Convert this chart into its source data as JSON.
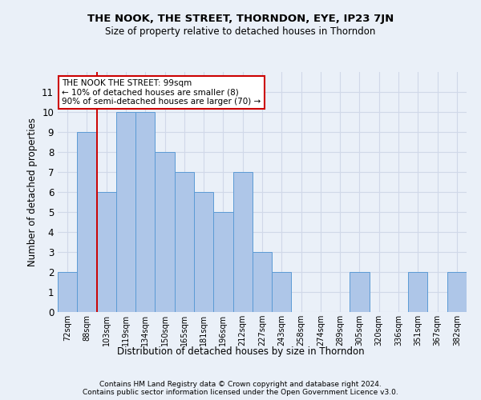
{
  "title": "THE NOOK, THE STREET, THORNDON, EYE, IP23 7JN",
  "subtitle": "Size of property relative to detached houses in Thorndon",
  "xlabel": "Distribution of detached houses by size in Thorndon",
  "ylabel": "Number of detached properties",
  "footer": "Contains HM Land Registry data © Crown copyright and database right 2024.\nContains public sector information licensed under the Open Government Licence v3.0.",
  "categories": [
    "72sqm",
    "88sqm",
    "103sqm",
    "119sqm",
    "134sqm",
    "150sqm",
    "165sqm",
    "181sqm",
    "196sqm",
    "212sqm",
    "227sqm",
    "243sqm",
    "258sqm",
    "274sqm",
    "289sqm",
    "305sqm",
    "320sqm",
    "336sqm",
    "351sqm",
    "367sqm",
    "382sqm"
  ],
  "values": [
    2,
    9,
    6,
    10,
    10,
    8,
    7,
    6,
    5,
    7,
    3,
    2,
    0,
    0,
    0,
    2,
    0,
    0,
    2,
    0,
    2
  ],
  "bar_color": "#aec6e8",
  "bar_edge_color": "#5b9bd5",
  "grid_color": "#d0d8e8",
  "background_color": "#eaf0f8",
  "vline_x": 1.5,
  "vline_color": "#cc0000",
  "annotation_text": "THE NOOK THE STREET: 99sqm\n← 10% of detached houses are smaller (8)\n90% of semi-detached houses are larger (70) →",
  "annotation_box_color": "#ffffff",
  "annotation_box_edge": "#cc0000",
  "ylim": [
    0,
    12
  ],
  "yticks": [
    0,
    1,
    2,
    3,
    4,
    5,
    6,
    7,
    8,
    9,
    10,
    11,
    12
  ]
}
